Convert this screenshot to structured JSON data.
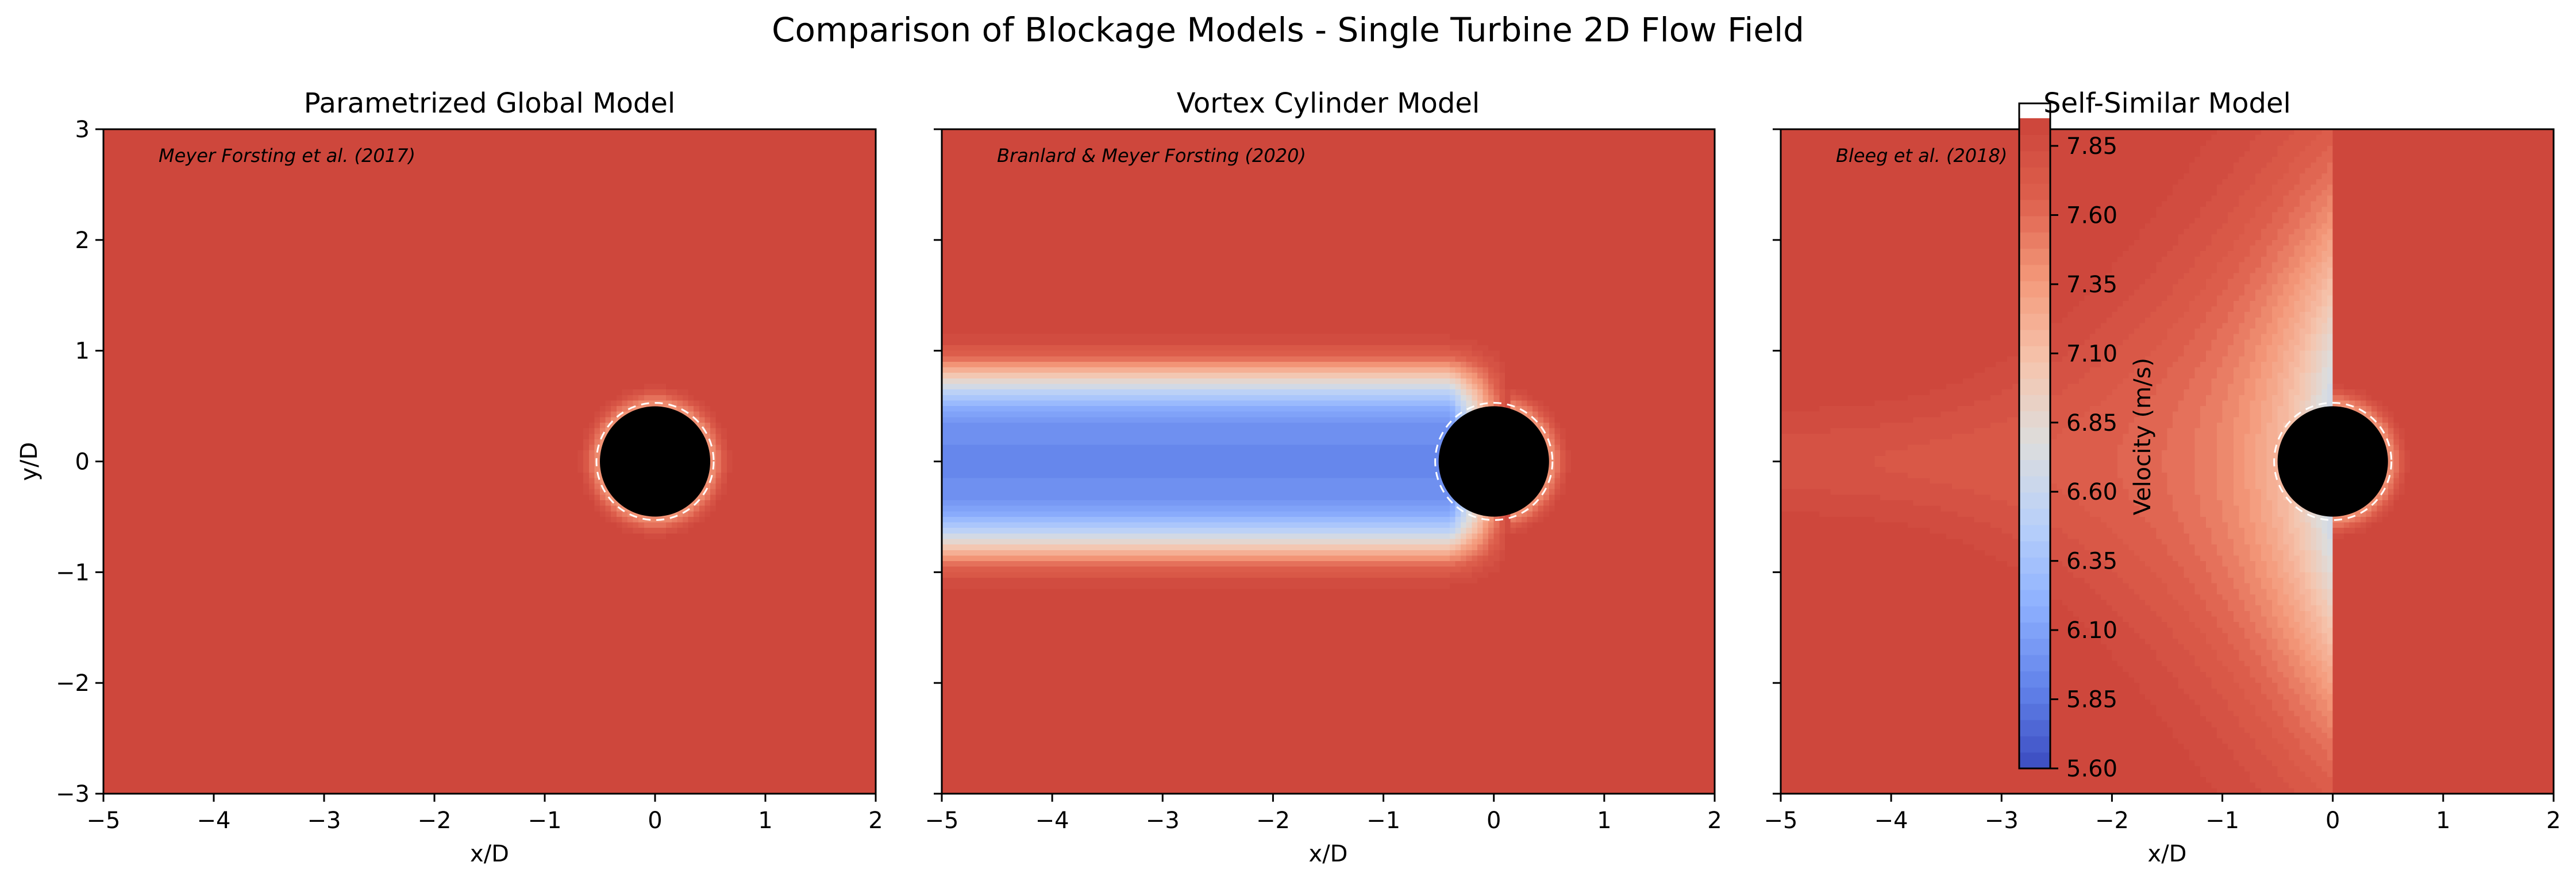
{
  "figure": {
    "title": "Comparison of Blockage Models - Single Turbine 2D Flow Field"
  },
  "colorbar": {
    "label": "Velocity (m/s)",
    "ticks": [
      "5.60",
      "5.85",
      "6.10",
      "6.35",
      "6.60",
      "6.85",
      "7.10",
      "7.35",
      "7.60",
      "7.85"
    ],
    "min": 5.6,
    "max": 7.95,
    "levels": 40,
    "colormap": "coolwarm"
  },
  "chart_data": [
    {
      "type": "heatmap",
      "title": "Parametrized Global Model",
      "annotation": "Meyer Forsting et al. (2017)",
      "xlabel": "x/D",
      "ylabel": "y/D",
      "xlim": [
        -5,
        2
      ],
      "ylim": [
        -3,
        3
      ],
      "xticks": [
        "−5",
        "−4",
        "−3",
        "−2",
        "−1",
        "0",
        "1",
        "2"
      ],
      "yticks": [
        "3",
        "2",
        "1",
        "0",
        "−1",
        "−2",
        "−3"
      ],
      "freestream_velocity": 7.95,
      "wake": "none",
      "turbine": {
        "x": 0,
        "y": 0,
        "diameter": 1
      }
    },
    {
      "type": "heatmap",
      "title": "Vortex Cylinder Model",
      "annotation": "Branlard & Meyer Forsting (2020)",
      "xlabel": "x/D",
      "ylabel": "",
      "xlim": [
        -5,
        2
      ],
      "ylim": [
        -3,
        3
      ],
      "xticks": [
        "−5",
        "−4",
        "−3",
        "−2",
        "−1",
        "0",
        "1",
        "2"
      ],
      "yticks": [],
      "freestream_velocity": 7.95,
      "wake": "cylindrical",
      "wake_centerline_velocity": 5.95,
      "wake_half_width": 1.0,
      "turbine": {
        "x": 0,
        "y": 0,
        "diameter": 1
      }
    },
    {
      "type": "heatmap",
      "title": "Self-Similar Model",
      "annotation": "Bleeg et al. (2018)",
      "xlabel": "x/D",
      "ylabel": "",
      "xlim": [
        -5,
        2
      ],
      "ylim": [
        -3,
        3
      ],
      "xticks": [
        "−5",
        "−4",
        "−3",
        "−2",
        "−1",
        "0",
        "1",
        "2"
      ],
      "yticks": [],
      "freestream_velocity": 7.95,
      "wake": "self-similar",
      "wake_centerline_velocity_near_rotor": 6.9,
      "wake_spread_at_rotor": 2.3,
      "turbine": {
        "x": 0,
        "y": 0,
        "diameter": 1
      }
    }
  ]
}
